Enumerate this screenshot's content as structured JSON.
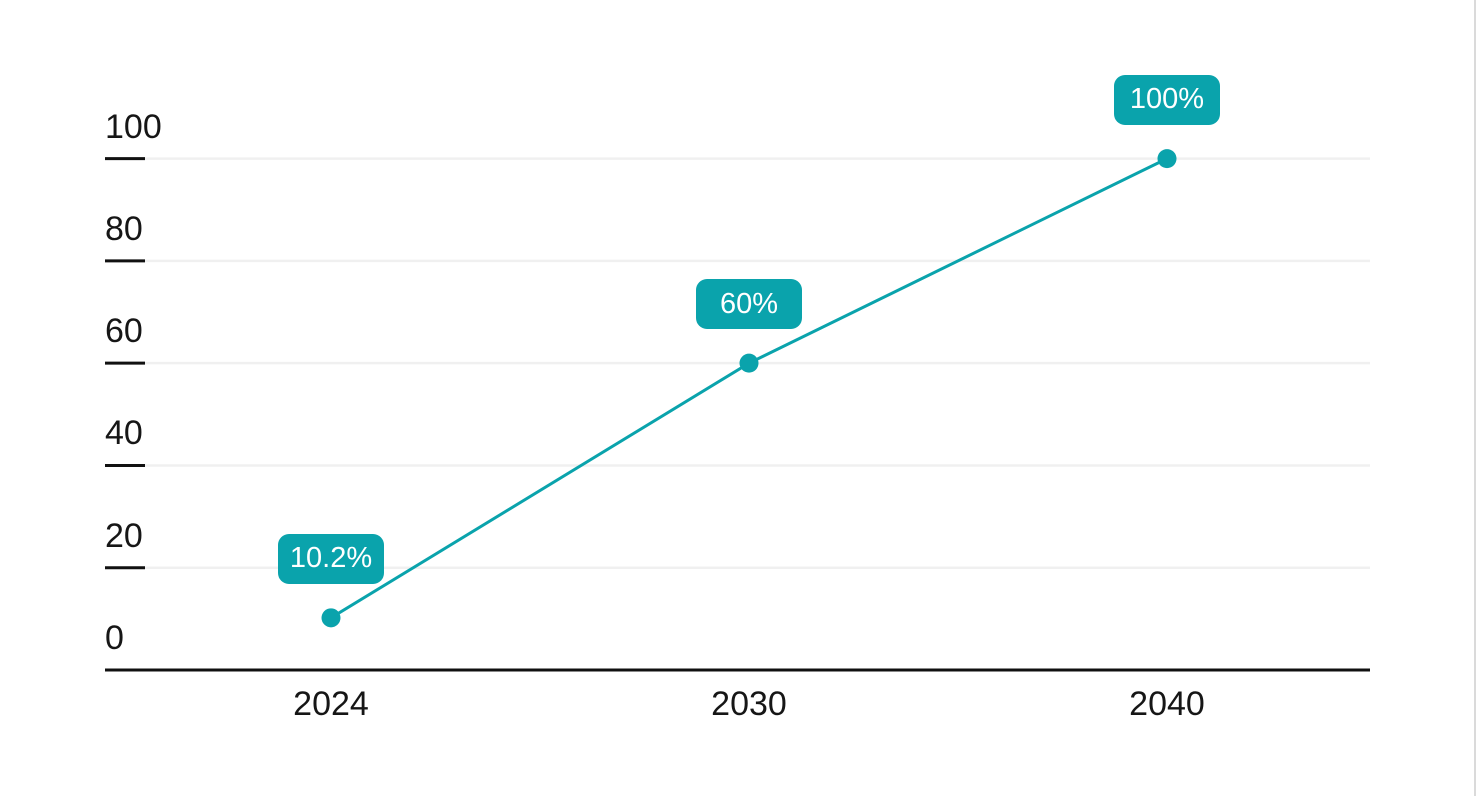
{
  "chart_data": {
    "type": "line",
    "title": "",
    "categories": [
      "2024",
      "2030",
      "2040"
    ],
    "values": [
      10.2,
      60,
      100
    ],
    "point_labels": [
      "10.2%",
      "60%",
      "100%"
    ],
    "y_ticks": [
      0,
      20,
      40,
      60,
      80,
      100
    ],
    "ylim": [
      0,
      100
    ],
    "grid": "horizontal",
    "legend_position": "none",
    "colors": {
      "series": "#0AA3AC",
      "data_point": "#0AA3AC",
      "label_badge_bg": "#0AA3AC",
      "label_badge_text": "#FFFFFF",
      "axis": "#111111",
      "tick_label": "#161616",
      "gridline": "#F0F0F0"
    }
  }
}
